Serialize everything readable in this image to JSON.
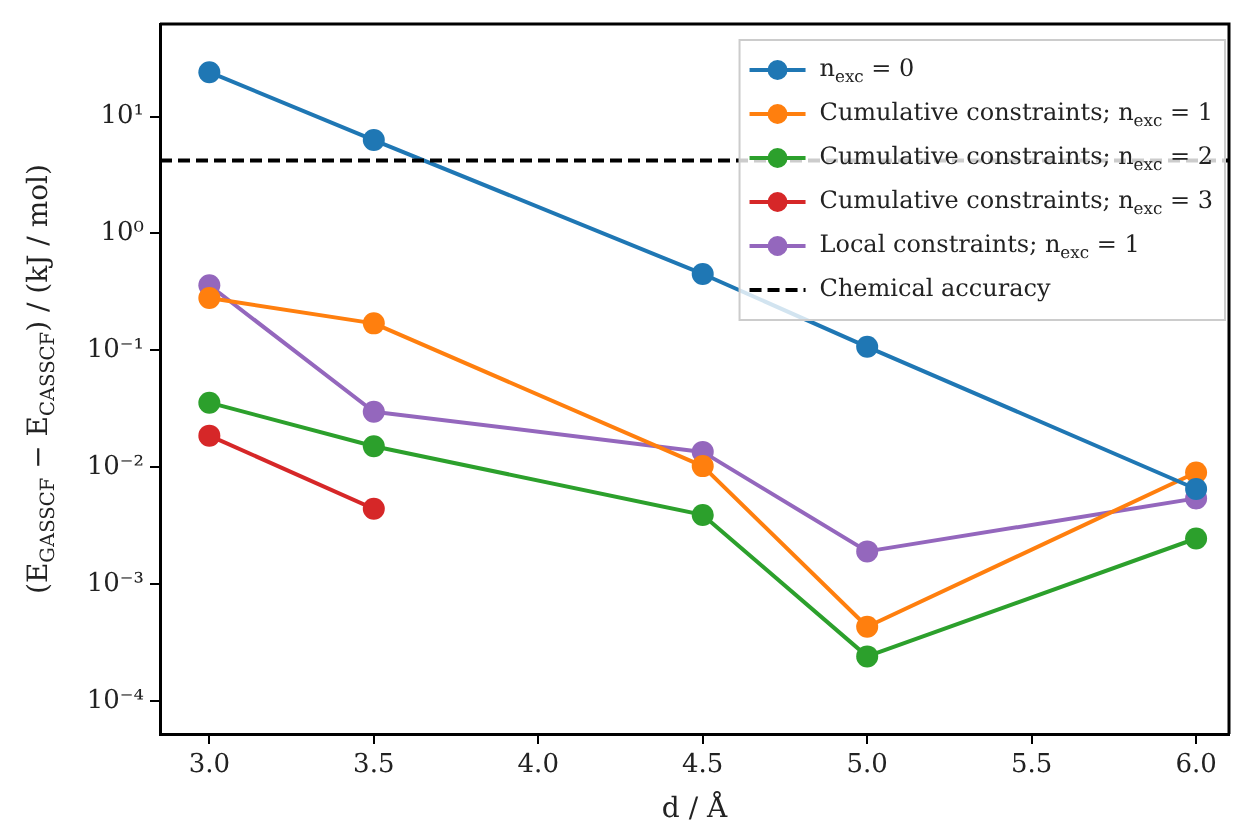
{
  "chart_data": {
    "type": "line",
    "xlabel": "d / Å",
    "ylabel": "(E$_{GASSCF}$ − E$_{CASSCF}$) / (kJ / mol)",
    "x": [
      3.0,
      3.5,
      4.5,
      5.0,
      6.0
    ],
    "series": [
      {
        "name": "n$_{exc}$ = 0",
        "color": "#1f77b4",
        "values": [
          24,
          6.3,
          0.45,
          0.107,
          0.0065
        ]
      },
      {
        "name": "Cumulative constraints; n$_{exc}$ = 1",
        "color": "#ff7f0e",
        "values": [
          0.28,
          0.17,
          0.0102,
          0.00043,
          0.009
        ]
      },
      {
        "name": "Cumulative constraints; n$_{exc}$ = 2",
        "color": "#2ca02c",
        "values": [
          0.0356,
          0.0151,
          0.0039,
          0.00024,
          0.00245
        ]
      },
      {
        "name": "Cumulative constraints; n$_{exc}$ = 3",
        "color": "#d62728",
        "values": [
          0.0186,
          0.0044,
          null,
          null,
          null
        ]
      },
      {
        "name": "Local constraints; n$_{exc}$ = 1",
        "color": "#9467bd",
        "values": [
          0.36,
          0.0298,
          0.0135,
          0.0019,
          0.0054
        ]
      }
    ],
    "ref_lines": [
      {
        "axis": "y",
        "value": 4.2,
        "label": "Chemical accuracy",
        "color": "#000000",
        "line_style": "dashed"
      }
    ],
    "log": "y",
    "xlim": [
      2.85,
      6.1
    ],
    "xticks": [
      {
        "value": 3,
        "label": "3.0"
      },
      {
        "value": 3.5,
        "label": "3.5"
      },
      {
        "value": 4,
        "label": "4.0"
      },
      {
        "value": 4.5,
        "label": "4.5"
      },
      {
        "value": 5,
        "label": "5.0"
      },
      {
        "value": 5.5,
        "label": "5.5"
      },
      {
        "value": 6,
        "label": "6.0"
      }
    ],
    "ylim": [
      5.2e-05,
      62
    ],
    "yticks": [
      {
        "value": 0.0001,
        "label": "10⁻⁴"
      },
      {
        "value": 0.001,
        "label": "10⁻³"
      },
      {
        "value": 0.01,
        "label": "10⁻²"
      },
      {
        "value": 0.1,
        "label": "10⁻¹"
      },
      {
        "value": 1,
        "label": "10⁰"
      },
      {
        "value": 10,
        "label": "10¹"
      }
    ],
    "grid": false,
    "legend": "top right",
    "marker": "circle",
    "line_style": "solid"
  }
}
